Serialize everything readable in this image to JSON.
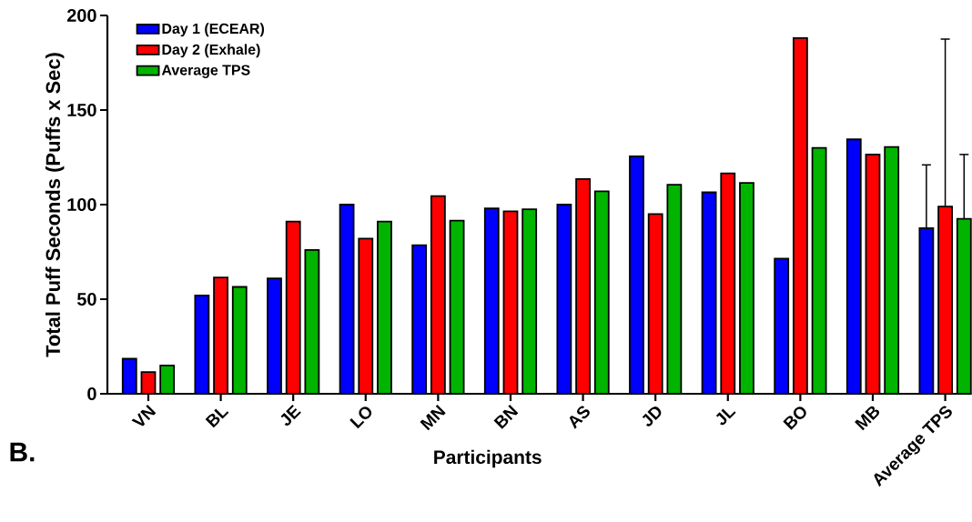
{
  "chart_data": {
    "type": "bar",
    "ylabel": "Total Puff Seconds (Puffs x Sec)",
    "xlabel": "Participants",
    "categories": [
      "VN",
      "BL",
      "JE",
      "LO",
      "MN",
      "BN",
      "AS",
      "JD",
      "JL",
      "BO",
      "MB",
      "Average TPS"
    ],
    "series": [
      {
        "name": "Day 1 (ECEAR)",
        "color": "#0000ff",
        "values": [
          18.5,
          52,
          61,
          100,
          78.5,
          98,
          100,
          125.5,
          106.5,
          71.5,
          134.5,
          87.5
        ],
        "errors": [
          null,
          null,
          null,
          null,
          null,
          null,
          null,
          null,
          null,
          null,
          null,
          33.5
        ]
      },
      {
        "name": "Day 2 (Exhale)",
        "color": "#ff0000",
        "values": [
          11.5,
          61.5,
          91,
          82,
          104.5,
          96.5,
          113.5,
          95,
          116.5,
          188,
          126.5,
          99
        ],
        "errors": [
          null,
          null,
          null,
          null,
          null,
          null,
          null,
          null,
          null,
          null,
          null,
          88.5
        ]
      },
      {
        "name": "Average TPS",
        "color": "#00b400",
        "values": [
          15,
          56.5,
          76,
          91,
          91.5,
          97.5,
          107,
          110.5,
          111.5,
          130,
          130.5,
          92.5
        ],
        "errors": [
          null,
          null,
          null,
          null,
          null,
          null,
          null,
          null,
          null,
          null,
          null,
          34
        ]
      }
    ],
    "ylim": [
      0,
      200
    ],
    "yticks": [
      0,
      50,
      100,
      150,
      200
    ],
    "grid": false,
    "legend": "top left",
    "annotations": [
      "B."
    ]
  }
}
